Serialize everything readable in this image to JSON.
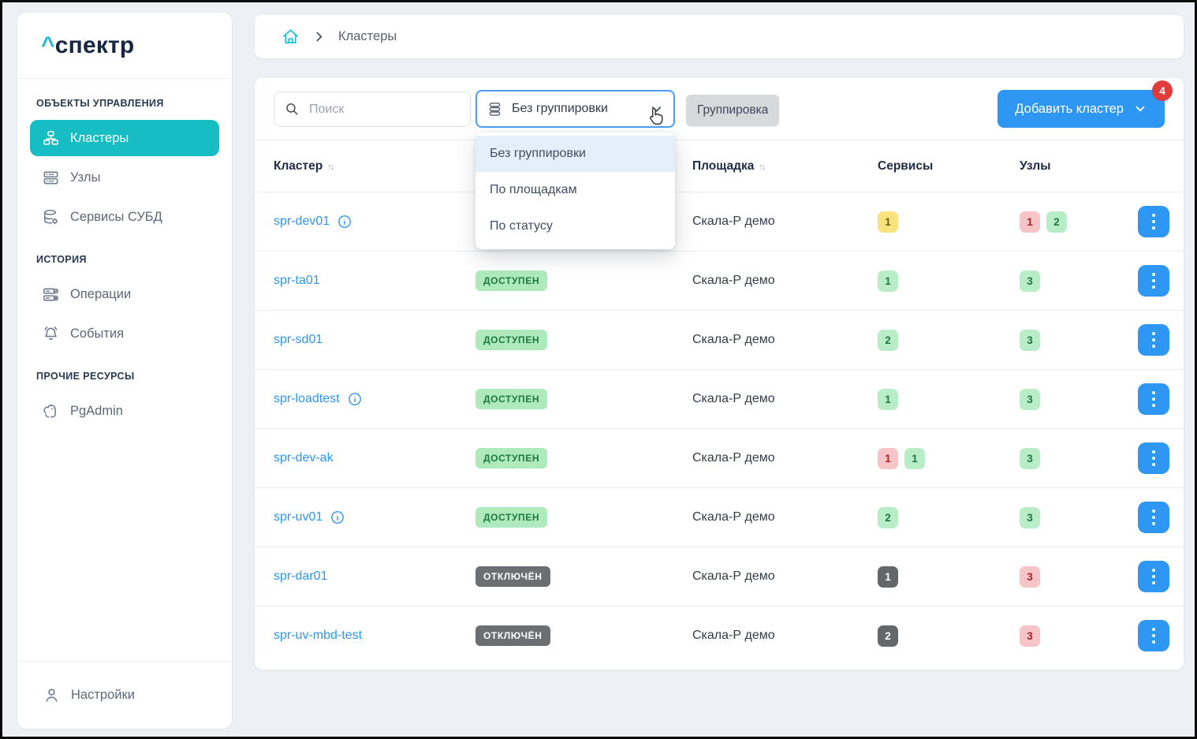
{
  "brand": {
    "caret": "^",
    "name": "спектр"
  },
  "colors": {
    "accent_teal": "#16bdc2",
    "accent_blue": "#2e96f3",
    "badge_red": "#e23b3b",
    "status_green_bg": "#aeeabc",
    "status_dark_bg": "#6b6f72"
  },
  "sidebar": {
    "sections": [
      {
        "title": "ОБЪЕКТЫ УПРАВЛЕНИЯ",
        "items": [
          {
            "label": "Кластеры",
            "icon": "clusters-icon",
            "active": true
          },
          {
            "label": "Узлы",
            "icon": "nodes-icon",
            "active": false
          },
          {
            "label": "Сервисы СУБД",
            "icon": "db-services-icon",
            "active": false
          }
        ]
      },
      {
        "title": "ИСТОРИЯ",
        "items": [
          {
            "label": "Операции",
            "icon": "operations-icon",
            "active": false
          },
          {
            "label": "События",
            "icon": "events-bell-icon",
            "active": false
          }
        ]
      },
      {
        "title": "ПРОЧИЕ РЕСУРСЫ",
        "items": [
          {
            "label": "PgAdmin",
            "icon": "pgadmin-elephant-icon",
            "active": false
          }
        ]
      }
    ],
    "footer": {
      "label": "Настройки",
      "icon": "user-icon"
    }
  },
  "breadcrumb": {
    "home_icon": "home-icon",
    "label": "Кластеры"
  },
  "toolbar": {
    "search_placeholder": "Поиск",
    "grouping_select_value": "Без группировки",
    "grouping_tooltip": "Группировка",
    "add_button_label": "Добавить кластер",
    "add_button_badge": "4"
  },
  "grouping_menu": {
    "options": [
      {
        "label": "Без группировки",
        "selected": true
      },
      {
        "label": "По площадкам",
        "selected": false
      },
      {
        "label": "По статусу",
        "selected": false
      }
    ]
  },
  "table": {
    "columns": [
      {
        "label": "Кластер",
        "sortable": true
      },
      {
        "label": "",
        "sortable": false
      },
      {
        "label": "Площадка",
        "sortable": true
      },
      {
        "label": "Сервисы",
        "sortable": false
      },
      {
        "label": "Узлы",
        "sortable": false
      }
    ],
    "rows": [
      {
        "name": "spr-dev01",
        "info": true,
        "status": null,
        "site": "Скала-Р демо",
        "services": [
          {
            "value": "1",
            "color": "yellow"
          }
        ],
        "nodes": [
          {
            "value": "1",
            "color": "red"
          },
          {
            "value": "2",
            "color": "green"
          }
        ]
      },
      {
        "name": "spr-ta01",
        "info": false,
        "status": {
          "label": "ДОСТУПЕН",
          "color": "green"
        },
        "site": "Скала-Р демо",
        "services": [
          {
            "value": "1",
            "color": "green"
          }
        ],
        "nodes": [
          {
            "value": "3",
            "color": "green"
          }
        ]
      },
      {
        "name": "spr-sd01",
        "info": false,
        "status": {
          "label": "ДОСТУПЕН",
          "color": "green"
        },
        "site": "Скала-Р демо",
        "services": [
          {
            "value": "2",
            "color": "green"
          }
        ],
        "nodes": [
          {
            "value": "3",
            "color": "green"
          }
        ]
      },
      {
        "name": "spr-loadtest",
        "info": true,
        "status": {
          "label": "ДОСТУПЕН",
          "color": "green"
        },
        "site": "Скала-Р демо",
        "services": [
          {
            "value": "1",
            "color": "green"
          }
        ],
        "nodes": [
          {
            "value": "3",
            "color": "green"
          }
        ]
      },
      {
        "name": "spr-dev-ak",
        "info": false,
        "status": {
          "label": "ДОСТУПЕН",
          "color": "green"
        },
        "site": "Скала-Р демо",
        "services": [
          {
            "value": "1",
            "color": "red"
          },
          {
            "value": "1",
            "color": "green"
          }
        ],
        "nodes": [
          {
            "value": "3",
            "color": "green"
          }
        ]
      },
      {
        "name": "spr-uv01",
        "info": true,
        "status": {
          "label": "ДОСТУПЕН",
          "color": "green"
        },
        "site": "Скала-Р демо",
        "services": [
          {
            "value": "2",
            "color": "green"
          }
        ],
        "nodes": [
          {
            "value": "3",
            "color": "green"
          }
        ]
      },
      {
        "name": "spr-dar01",
        "info": false,
        "status": {
          "label": "ОТКЛЮЧЁН",
          "color": "dark"
        },
        "site": "Скала-Р демо",
        "services": [
          {
            "value": "1",
            "color": "dark"
          }
        ],
        "nodes": [
          {
            "value": "3",
            "color": "red"
          }
        ]
      },
      {
        "name": "spr-uv-mbd-test",
        "info": false,
        "status": {
          "label": "ОТКЛЮЧЁН",
          "color": "dark"
        },
        "site": "Скала-Р демо",
        "services": [
          {
            "value": "2",
            "color": "dark"
          }
        ],
        "nodes": [
          {
            "value": "3",
            "color": "red"
          }
        ]
      }
    ]
  }
}
